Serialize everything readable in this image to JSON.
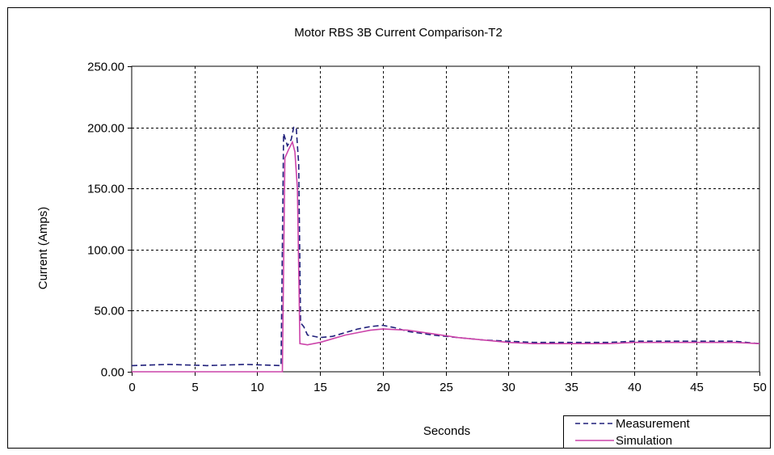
{
  "chart_data": {
    "type": "line",
    "title": "Motor RBS 3B Current Comparison-T2",
    "xlabel": "Seconds",
    "ylabel": "Current (Amps)",
    "xlim": [
      0,
      50
    ],
    "ylim": [
      0,
      250
    ],
    "x_ticks": [
      "0",
      "5",
      "10",
      "15",
      "20",
      "25",
      "30",
      "35",
      "40",
      "45",
      "50"
    ],
    "y_ticks": [
      "0.00",
      "50.00",
      "100.00",
      "150.00",
      "200.00",
      "250.00"
    ],
    "grid": true,
    "legend_position": "bottom-right",
    "series": [
      {
        "name": "Measurement",
        "color": "#1f1f7a",
        "style": "dashed",
        "points": [
          [
            0,
            5
          ],
          [
            3,
            6
          ],
          [
            6,
            5
          ],
          [
            9,
            6
          ],
          [
            11.9,
            5
          ],
          [
            12.1,
            195
          ],
          [
            12.4,
            185
          ],
          [
            12.7,
            190
          ],
          [
            12.9,
            200
          ],
          [
            13.1,
            200
          ],
          [
            13.3,
            170
          ],
          [
            13.45,
            40
          ],
          [
            13.7,
            37
          ],
          [
            14,
            30
          ],
          [
            15,
            28
          ],
          [
            16,
            29
          ],
          [
            17,
            32
          ],
          [
            18,
            35
          ],
          [
            19,
            37
          ],
          [
            20,
            38
          ],
          [
            21,
            36
          ],
          [
            22,
            33
          ],
          [
            24,
            30
          ],
          [
            26,
            28
          ],
          [
            28,
            26
          ],
          [
            30,
            25
          ],
          [
            32,
            24
          ],
          [
            34,
            24
          ],
          [
            36,
            24
          ],
          [
            38,
            24
          ],
          [
            40,
            25
          ],
          [
            42,
            25
          ],
          [
            44,
            25
          ],
          [
            46,
            25
          ],
          [
            48,
            25
          ],
          [
            50,
            23
          ]
        ]
      },
      {
        "name": "Simulation",
        "color": "#cc44aa",
        "style": "solid",
        "points": [
          [
            0,
            0
          ],
          [
            12.0,
            0
          ],
          [
            12.2,
            175
          ],
          [
            12.5,
            182
          ],
          [
            12.8,
            188
          ],
          [
            13.0,
            180
          ],
          [
            13.2,
            150
          ],
          [
            13.4,
            23
          ],
          [
            14,
            22
          ],
          [
            15,
            24
          ],
          [
            16,
            27
          ],
          [
            17,
            30
          ],
          [
            18,
            32
          ],
          [
            19,
            34
          ],
          [
            20,
            35
          ],
          [
            22,
            34
          ],
          [
            24,
            31
          ],
          [
            26,
            28
          ],
          [
            28,
            26
          ],
          [
            30,
            24
          ],
          [
            32,
            23
          ],
          [
            34,
            23
          ],
          [
            36,
            23
          ],
          [
            38,
            23
          ],
          [
            40,
            24
          ],
          [
            42,
            24
          ],
          [
            44,
            24
          ],
          [
            46,
            24
          ],
          [
            48,
            24
          ],
          [
            50,
            23
          ]
        ]
      }
    ]
  }
}
